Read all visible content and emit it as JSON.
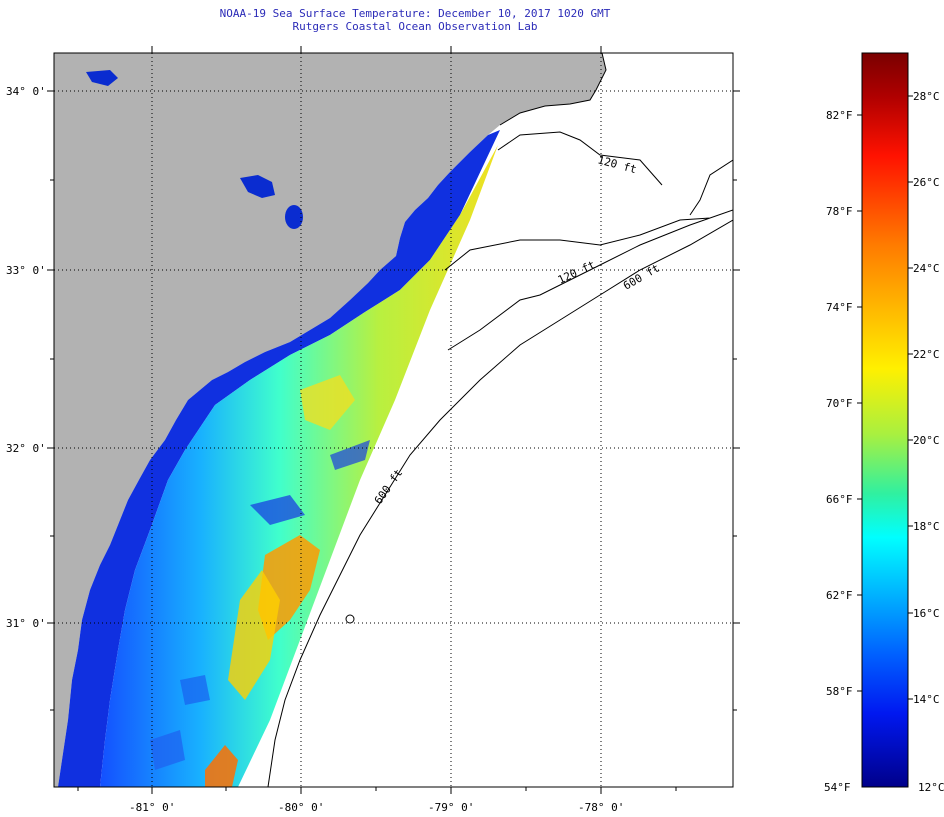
{
  "header": {
    "title": "NOAA-19 Sea Surface Temperature:  December 10, 2017 1020 GMT",
    "subtitle": "Rutgers Coastal Ocean Observation Lab"
  },
  "map": {
    "latitude_labels": [
      "34° 0'",
      "33° 0'",
      "32° 0'",
      "31° 0'"
    ],
    "longitude_labels": [
      "-81° 0'",
      "-80° 0'",
      "-79° 0'",
      "-78° 0'"
    ],
    "contour_labels": [
      "120 ft",
      "600 ft",
      "600 ft",
      "120 ft"
    ],
    "colors": {
      "land": "#b2b2b2",
      "no_data": "#ffffff",
      "coastline": "#000000"
    }
  },
  "colorbar": {
    "fahrenheit_labels": [
      "82°F",
      "78°F",
      "74°F",
      "70°F",
      "66°F",
      "62°F",
      "58°F",
      "54°F"
    ],
    "celsius_labels": [
      "28°C",
      "26°C",
      "24°C",
      "22°C",
      "20°C",
      "18°C",
      "16°C",
      "14°C",
      "12°C"
    ],
    "range_f": [
      54,
      86
    ],
    "range_c": [
      12,
      30
    ]
  }
}
